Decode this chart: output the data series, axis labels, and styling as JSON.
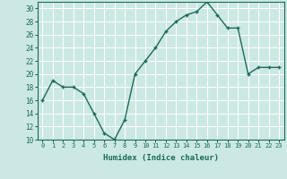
{
  "x": [
    0,
    1,
    2,
    3,
    4,
    5,
    6,
    7,
    8,
    9,
    10,
    11,
    12,
    13,
    14,
    15,
    16,
    17,
    18,
    19,
    20,
    21,
    22,
    23
  ],
  "y": [
    16,
    19,
    18,
    18,
    17,
    14,
    11,
    10,
    13,
    20,
    22,
    24,
    26.5,
    28,
    29,
    29.5,
    31,
    29,
    27,
    27,
    20,
    21,
    21,
    21
  ],
  "xlabel": "Humidex (Indice chaleur)",
  "ylim": [
    10,
    31
  ],
  "yticks": [
    10,
    12,
    14,
    16,
    18,
    20,
    22,
    24,
    26,
    28,
    30
  ],
  "xticks": [
    0,
    1,
    2,
    3,
    4,
    5,
    6,
    7,
    8,
    9,
    10,
    11,
    12,
    13,
    14,
    15,
    16,
    17,
    18,
    19,
    20,
    21,
    22,
    23
  ],
  "line_color": "#1a6b5a",
  "marker_color": "#1a6b5a",
  "bg_color": "#cce8e4",
  "grid_color": "#ffffff",
  "label_color": "#1a6b5a",
  "tick_color": "#1a6b5a"
}
